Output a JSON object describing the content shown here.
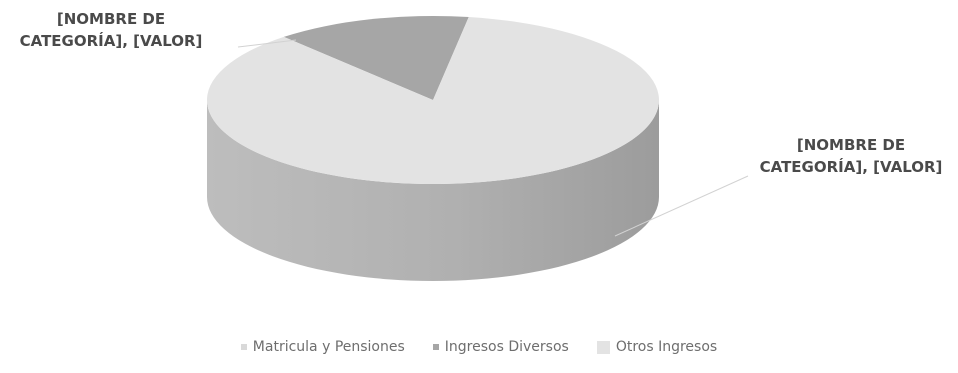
{
  "chart_data": {
    "type": "pie",
    "style": "3d",
    "title": "",
    "series": [
      {
        "categories": [
          "Matricula y Pensiones",
          "Ingresos Diversos",
          "Otros Ingresos"
        ],
        "values": [
          0,
          14,
          86
        ]
      }
    ],
    "colors": [
      "#d9d9d9",
      "#a6a6a6",
      "#e3e3e3"
    ],
    "data_labels": [
      {
        "line1": "[NOMBRE DE",
        "line2": "CATEGORÍA], [VALOR]"
      },
      {
        "line1": "[NOMBRE DE",
        "line2": "CATEGORÍA], [VALOR]"
      }
    ],
    "legend": {
      "position": "bottom",
      "items": [
        "Matricula y Pensiones",
        "Ingresos Diversos",
        "Otros Ingresos"
      ]
    }
  }
}
